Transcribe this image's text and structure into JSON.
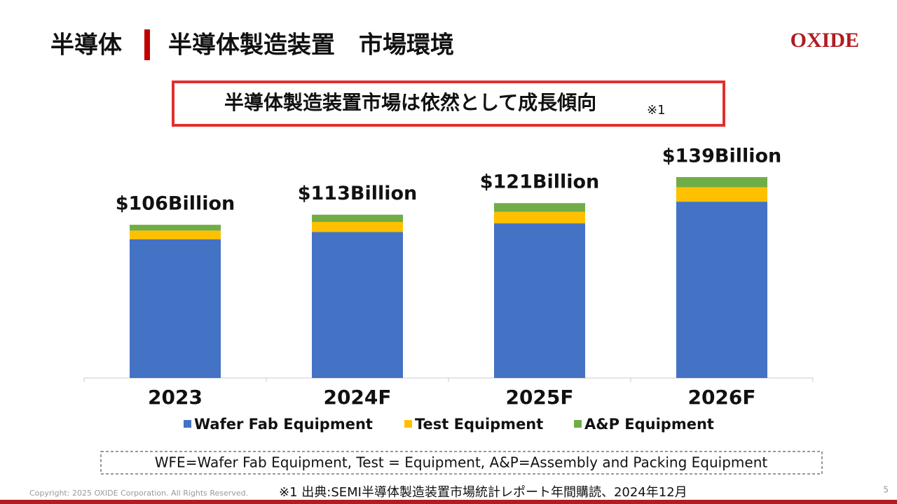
{
  "header": {
    "section": "半導体",
    "title": "半導体製造装置　市場環境",
    "logo": "OXIDE"
  },
  "callout": {
    "text": "半導体製造装置市場は依然として成長傾向",
    "note_mark": "※1"
  },
  "chart_data": {
    "type": "stacked_bar",
    "categories": [
      "2023",
      "2024F",
      "2025F",
      "2026F"
    ],
    "series": [
      {
        "name": "Wafer Fab Equipment",
        "color": "#4472c4",
        "values": [
          96,
          101,
          107,
          122
        ]
      },
      {
        "name": "Test Equipment",
        "color": "#ffc000",
        "values": [
          6,
          7,
          8,
          10
        ]
      },
      {
        "name": "A&P Equipment",
        "color": "#70ad47",
        "values": [
          4,
          5,
          6,
          7
        ]
      }
    ],
    "totals": {
      "values": [
        106,
        113,
        121,
        139
      ],
      "value_labels": [
        "$106Billion",
        "$113Billion",
        "$121Billion",
        "$139Billion"
      ]
    }
  },
  "definition_note": "WFE=Wafer Fab Equipment,  Test = Equipment, A&P=Assembly and Packing Equipment",
  "footer": {
    "copyright": "Copyright: 2025 OXIDE Corporation. All Rights Reserved.",
    "source": "※1 出典:SEMI半導体製造装置市場統計レポート年間購読、2024年12月",
    "page": "5"
  }
}
